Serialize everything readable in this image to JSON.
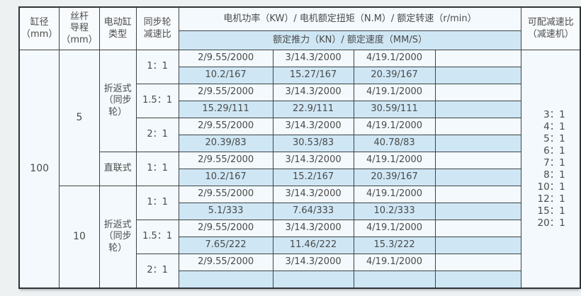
{
  "page": {
    "background": "#eef1f2"
  },
  "colors": {
    "row_light": "#f3f9fc",
    "row_blue": "#cfe7f5",
    "cell_plain": "#f8fbfd",
    "border": "#3d4245",
    "text": "#4a4a4a"
  },
  "table": {
    "header": {
      "bore": "缸径\n（mm）",
      "lead": "丝杆\n导程\n（mm）",
      "cylinder_type": "电动缸\n类型",
      "sync_ratio": "同步轮\n减速比",
      "motor_spec": "电机功率（KW）/ 电机额定扭矩（N.M）/ 额定转速（r/min）",
      "thrust_speed": "额定推力（KN）/ 额定速度（MM/S）",
      "reducer": "可配减速比\n（减速机）"
    },
    "reducer_options": [
      "3：1",
      "4：1",
      "5：1",
      "6：1",
      "7：1",
      "8：1",
      "10：1",
      "12：1",
      "15：1",
      "20：1"
    ],
    "body": {
      "rows": [
        {
          "shade": "light",
          "cells": [
            {
              "t": "100",
              "rs": 14,
              "cls": "merged num",
              "name": "bore-value"
            },
            {
              "t": "5",
              "rs": 8,
              "cls": "merged num",
              "name": "lead-value"
            },
            {
              "t": "折返式\n（同步\n轮）",
              "rs": 6,
              "cls": "merged",
              "name": "type-value"
            },
            {
              "t": "1：1",
              "rs": 2,
              "cls": "merged",
              "name": "ratio-value"
            },
            {
              "t": "2/9.55/2000"
            },
            {
              "t": "3/14.3/2000"
            },
            {
              "t": "4/19.1/2000"
            },
            {
              "t": ""
            },
            {
              "t": "",
              "rs": 14,
              "cls": "merged reducer",
              "name": "reducer-options"
            }
          ]
        },
        {
          "shade": "blue",
          "cells": [
            {
              "t": "10.2/167"
            },
            {
              "t": "15.27/167"
            },
            {
              "t": "20.39/167"
            },
            {
              "t": ""
            }
          ]
        },
        {
          "shade": "light",
          "cells": [
            {
              "t": "1.5：1",
              "rs": 2,
              "cls": "merged",
              "name": "ratio-value"
            },
            {
              "t": "2/9.55/2000"
            },
            {
              "t": "3/14.3/2000"
            },
            {
              "t": "4/19.1/2000"
            },
            {
              "t": ""
            }
          ]
        },
        {
          "shade": "blue",
          "cells": [
            {
              "t": "15.29/111"
            },
            {
              "t": "22.9/111"
            },
            {
              "t": "30.59/111"
            },
            {
              "t": ""
            }
          ]
        },
        {
          "shade": "light",
          "cells": [
            {
              "t": "2：1",
              "rs": 2,
              "cls": "merged",
              "name": "ratio-value"
            },
            {
              "t": "2/9.55/2000"
            },
            {
              "t": "3/14.3/2000"
            },
            {
              "t": "4/19.1/2000"
            },
            {
              "t": ""
            }
          ]
        },
        {
          "shade": "blue",
          "cells": [
            {
              "t": "20.39/83"
            },
            {
              "t": "30.53/83"
            },
            {
              "t": "40.78/83"
            },
            {
              "t": ""
            }
          ]
        },
        {
          "shade": "light",
          "cells": [
            {
              "t": "直联式",
              "rs": 2,
              "cls": "merged",
              "name": "type-value"
            },
            {
              "t": "1：1",
              "rs": 2,
              "cls": "merged",
              "name": "ratio-value"
            },
            {
              "t": "2/9.55/2000"
            },
            {
              "t": "3/14.3/2000"
            },
            {
              "t": "4/19.1/2000"
            },
            {
              "t": ""
            }
          ]
        },
        {
          "shade": "blue",
          "cells": [
            {
              "t": "10.2/167"
            },
            {
              "t": "15.2/167"
            },
            {
              "t": "20.39/167"
            },
            {
              "t": ""
            }
          ]
        },
        {
          "shade": "light",
          "cells": [
            {
              "t": "10",
              "rs": 6,
              "cls": "merged num",
              "name": "lead-value"
            },
            {
              "t": "折返式\n（同步\n轮）",
              "rs": 6,
              "cls": "merged",
              "name": "type-value"
            },
            {
              "t": "1：1",
              "rs": 2,
              "cls": "merged",
              "name": "ratio-value"
            },
            {
              "t": "2/9.55/2000"
            },
            {
              "t": "3/14.3/2000"
            },
            {
              "t": "4/19.1/2000"
            },
            {
              "t": ""
            }
          ]
        },
        {
          "shade": "blue",
          "cells": [
            {
              "t": "5.1/333"
            },
            {
              "t": "7.64/333"
            },
            {
              "t": "10.2/333"
            },
            {
              "t": ""
            }
          ]
        },
        {
          "shade": "light",
          "cells": [
            {
              "t": "1.5：1",
              "rs": 2,
              "cls": "merged",
              "name": "ratio-value"
            },
            {
              "t": "2/9.55/2000"
            },
            {
              "t": "3/14.3/2000"
            },
            {
              "t": "4/19.1/2000"
            },
            {
              "t": ""
            }
          ]
        },
        {
          "shade": "blue",
          "cells": [
            {
              "t": "7.65/222"
            },
            {
              "t": "11.46/222"
            },
            {
              "t": "15.3/222"
            },
            {
              "t": ""
            }
          ]
        },
        {
          "shade": "light",
          "cells": [
            {
              "t": "2：1",
              "rs": 2,
              "cls": "merged",
              "name": "ratio-value"
            },
            {
              "t": "2/9.55/2000"
            },
            {
              "t": "3/14.3/2000"
            },
            {
              "t": "4/19.1/2000"
            },
            {
              "t": ""
            }
          ]
        },
        {
          "shade": "blue",
          "cells": [
            {
              "t": ""
            },
            {
              "t": ""
            },
            {
              "t": ""
            },
            {
              "t": ""
            }
          ]
        }
      ]
    }
  }
}
